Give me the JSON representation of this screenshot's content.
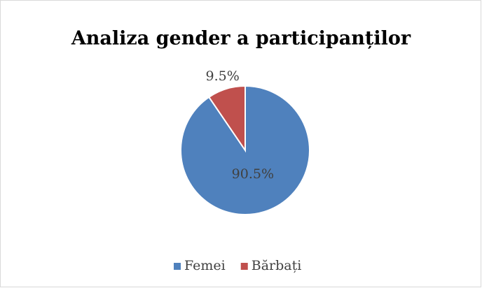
{
  "chart_data": {
    "type": "pie",
    "title": "Analiza gender a participanților",
    "categories": [
      "Femei",
      "Bărbați"
    ],
    "values": [
      90.5,
      9.5
    ],
    "value_labels": [
      "90.5%",
      "9.5%"
    ],
    "colors": [
      "#4f81bd",
      "#c0504d"
    ],
    "legend": "bottom"
  }
}
